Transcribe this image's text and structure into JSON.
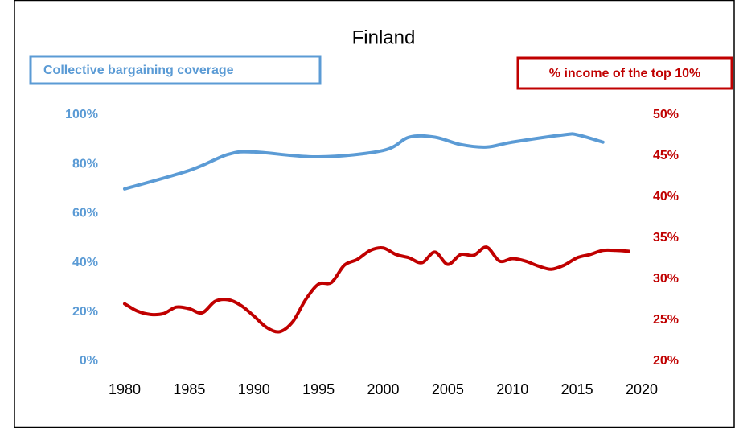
{
  "chart_data": {
    "type": "line",
    "title": "Finland",
    "series": [
      {
        "name": "Collective bargaining coverage",
        "color": "#5b9bd5",
        "axis": "y",
        "x": [
          1980,
          1985,
          1988,
          1990,
          1995,
          2000,
          2002,
          2004,
          2006,
          2008,
          2010,
          2014,
          2015,
          2017
        ],
        "values": [
          70,
          77.5,
          84,
          85,
          83,
          85.6,
          91,
          91,
          88,
          87,
          89,
          92,
          92,
          89
        ]
      },
      {
        "name": "% income of the top 10%",
        "color": "#c00000",
        "axis": "y2",
        "x": [
          1980,
          1981,
          1982,
          1983,
          1984,
          1985,
          1986,
          1987,
          1988,
          1989,
          1990,
          1991,
          1992,
          1993,
          1994,
          1995,
          1996,
          1997,
          1998,
          1999,
          2000,
          2001,
          2002,
          2003,
          2004,
          2005,
          2006,
          2007,
          2008,
          2009,
          2010,
          2011,
          2012,
          2013,
          2014,
          2015,
          2016,
          2017,
          2018,
          2019
        ],
        "values": [
          27.0,
          26.1,
          25.7,
          25.8,
          26.6,
          26.4,
          25.9,
          27.3,
          27.5,
          26.8,
          25.5,
          24.1,
          23.6,
          24.8,
          27.5,
          29.4,
          29.6,
          31.7,
          32.4,
          33.5,
          33.8,
          33.0,
          32.6,
          32.0,
          33.3,
          31.8,
          33.0,
          32.9,
          33.9,
          32.2,
          32.5,
          32.2,
          31.6,
          31.2,
          31.7,
          32.6,
          33.0,
          33.5,
          33.5,
          33.4
        ]
      }
    ],
    "xlim": [
      1980,
      2020
    ],
    "xticks": [
      1980,
      1985,
      1990,
      1995,
      2000,
      2005,
      2010,
      2015,
      2020
    ],
    "ylim": [
      0,
      100
    ],
    "yticks": [
      {
        "value": 0,
        "label": "0%"
      },
      {
        "value": 20,
        "label": "20%"
      },
      {
        "value": 40,
        "label": "40%"
      },
      {
        "value": 60,
        "label": "60%"
      },
      {
        "value": 80,
        "label": "80%"
      },
      {
        "value": 100,
        "label": "100%"
      }
    ],
    "y2lim": [
      20,
      50
    ],
    "y2ticks": [
      {
        "value": 20,
        "label": "20%"
      },
      {
        "value": 25,
        "label": "25%"
      },
      {
        "value": 30,
        "label": "30%"
      },
      {
        "value": 35,
        "label": "35%"
      },
      {
        "value": 40,
        "label": "40%"
      },
      {
        "value": 45,
        "label": "45%"
      },
      {
        "value": 50,
        "label": "50%"
      }
    ],
    "grid": false
  }
}
